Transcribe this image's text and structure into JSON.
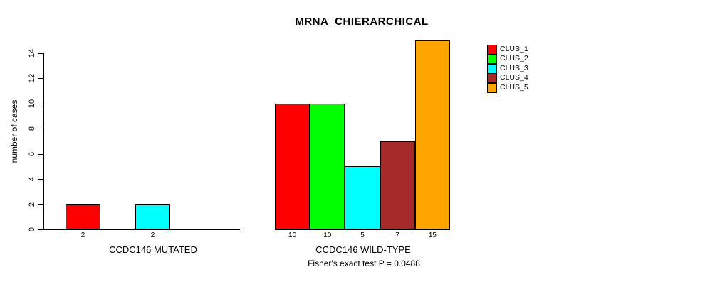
{
  "title": "MRNA_CHIERARCHICAL",
  "chart_data": {
    "type": "bar",
    "title": "MRNA_CHIERARCHICAL",
    "ylabel": "number of cases",
    "ylim": [
      0,
      15
    ],
    "yticks": [
      0,
      2,
      4,
      6,
      8,
      10,
      12,
      14
    ],
    "grid": false,
    "legend_position": "right",
    "series": [
      {
        "name": "CLUS_1",
        "color": "#FF0000"
      },
      {
        "name": "CLUS_2",
        "color": "#00FF00"
      },
      {
        "name": "CLUS_3",
        "color": "#00FFFF"
      },
      {
        "name": "CLUS_4",
        "color": "#A52A2A"
      },
      {
        "name": "CLUS_5",
        "color": "#FFA500"
      }
    ],
    "groups": [
      {
        "label": "CCDC146 MUTATED",
        "values": [
          2,
          0,
          2,
          0,
          0
        ],
        "value_labels": [
          "2",
          "",
          "2",
          "",
          ""
        ]
      },
      {
        "label": "CCDC146 WILD-TYPE",
        "values": [
          10,
          10,
          5,
          7,
          15
        ],
        "value_labels": [
          "10",
          "10",
          "5",
          "7",
          "15"
        ]
      }
    ],
    "annotation": "Fisher's exact test P = 0.0488"
  }
}
